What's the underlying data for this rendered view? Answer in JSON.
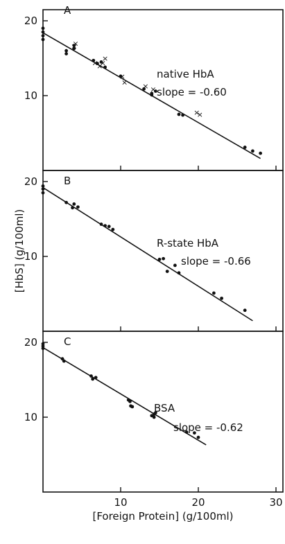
{
  "chart_data": [
    {
      "type": "scatter",
      "panel": "A",
      "xlim": [
        0,
        30
      ],
      "ylim": [
        0,
        20
      ],
      "x_ticks": [
        "10",
        "20",
        "30"
      ],
      "y_ticks": [
        "20",
        "10"
      ],
      "annotation": "native HbA",
      "slope_label": "slope = -0.60",
      "fit": {
        "x": [
          0,
          28
        ],
        "y": [
          18.4,
          1.6
        ]
      },
      "series": [
        {
          "marker": "dot",
          "x": [
            0,
            0,
            0,
            0,
            3,
            3,
            4,
            4,
            6.5,
            7,
            7.5,
            8,
            10,
            13,
            14,
            14,
            14.5,
            17.5,
            18,
            26,
            27,
            28
          ],
          "y": [
            17.5,
            18,
            18.5,
            19,
            16,
            15.6,
            16.3,
            16.7,
            14.7,
            14.3,
            14.5,
            13.8,
            12.6,
            10.9,
            10.3,
            10.1,
            10.6,
            7.5,
            7.4,
            3.1,
            2.6,
            2.3
          ]
        },
        {
          "marker": "x",
          "x": [
            4,
            4.2,
            6.7,
            7.3,
            7.7,
            8,
            10.2,
            10.5,
            13.2,
            14.2,
            19.8,
            20.2
          ],
          "y": [
            16.6,
            17,
            14.4,
            14,
            14.4,
            15,
            12.6,
            11.8,
            11.3,
            10.9,
            7.8,
            7.5
          ]
        }
      ]
    },
    {
      "type": "scatter",
      "panel": "B",
      "xlim": [
        0,
        30
      ],
      "ylim": [
        0,
        20
      ],
      "x_ticks": [
        "10",
        "20",
        "30"
      ],
      "y_ticks": [
        "20",
        "10"
      ],
      "annotation": "R-state HbA",
      "slope_label": "slope = -0.66",
      "fit": {
        "x": [
          0,
          27
        ],
        "y": [
          19.2,
          1.4
        ]
      },
      "series": [
        {
          "marker": "dot",
          "x": [
            0,
            0,
            0,
            3,
            3.8,
            4,
            4.5,
            7.5,
            8,
            8.5,
            9,
            15,
            15.5,
            16,
            17,
            17.5,
            22,
            23,
            26
          ],
          "y": [
            19,
            18.5,
            19.4,
            17.2,
            16.5,
            17,
            16.6,
            14.3,
            14.1,
            14,
            13.6,
            9.6,
            9.7,
            8,
            8.8,
            7.8,
            5.1,
            4.4,
            2.8
          ]
        }
      ]
    },
    {
      "type": "scatter",
      "panel": "C",
      "xlim": [
        0,
        30
      ],
      "ylim": [
        0,
        20
      ],
      "x_ticks": [
        "10",
        "20",
        "30"
      ],
      "y_ticks": [
        "20",
        "10"
      ],
      "annotation": "BSA",
      "slope_label": "slope = -0.62",
      "fit": {
        "x": [
          0,
          21
        ],
        "y": [
          19.3,
          6.3
        ]
      },
      "series": [
        {
          "marker": "dot",
          "x": [
            0,
            0,
            0,
            2.5,
            2.7,
            6.2,
            6.4,
            6.8,
            11,
            11.3,
            11.5,
            11.2,
            14,
            14.3,
            14.5,
            14.3,
            18.5,
            19.5,
            20
          ],
          "y": [
            19.5,
            19.2,
            19.8,
            17.8,
            17.5,
            15.5,
            15.1,
            15.3,
            12.3,
            11.5,
            11.4,
            12.1,
            10.2,
            10.4,
            10.6,
            10,
            8,
            7.9,
            7.3
          ]
        }
      ]
    }
  ],
  "y_axis_label": "[HbS] (g/100ml)",
  "x_axis_label": "[Foreign Protein] (g/100ml)",
  "bottom_x_ticks": [
    "0",
    "10",
    "20",
    "30"
  ]
}
